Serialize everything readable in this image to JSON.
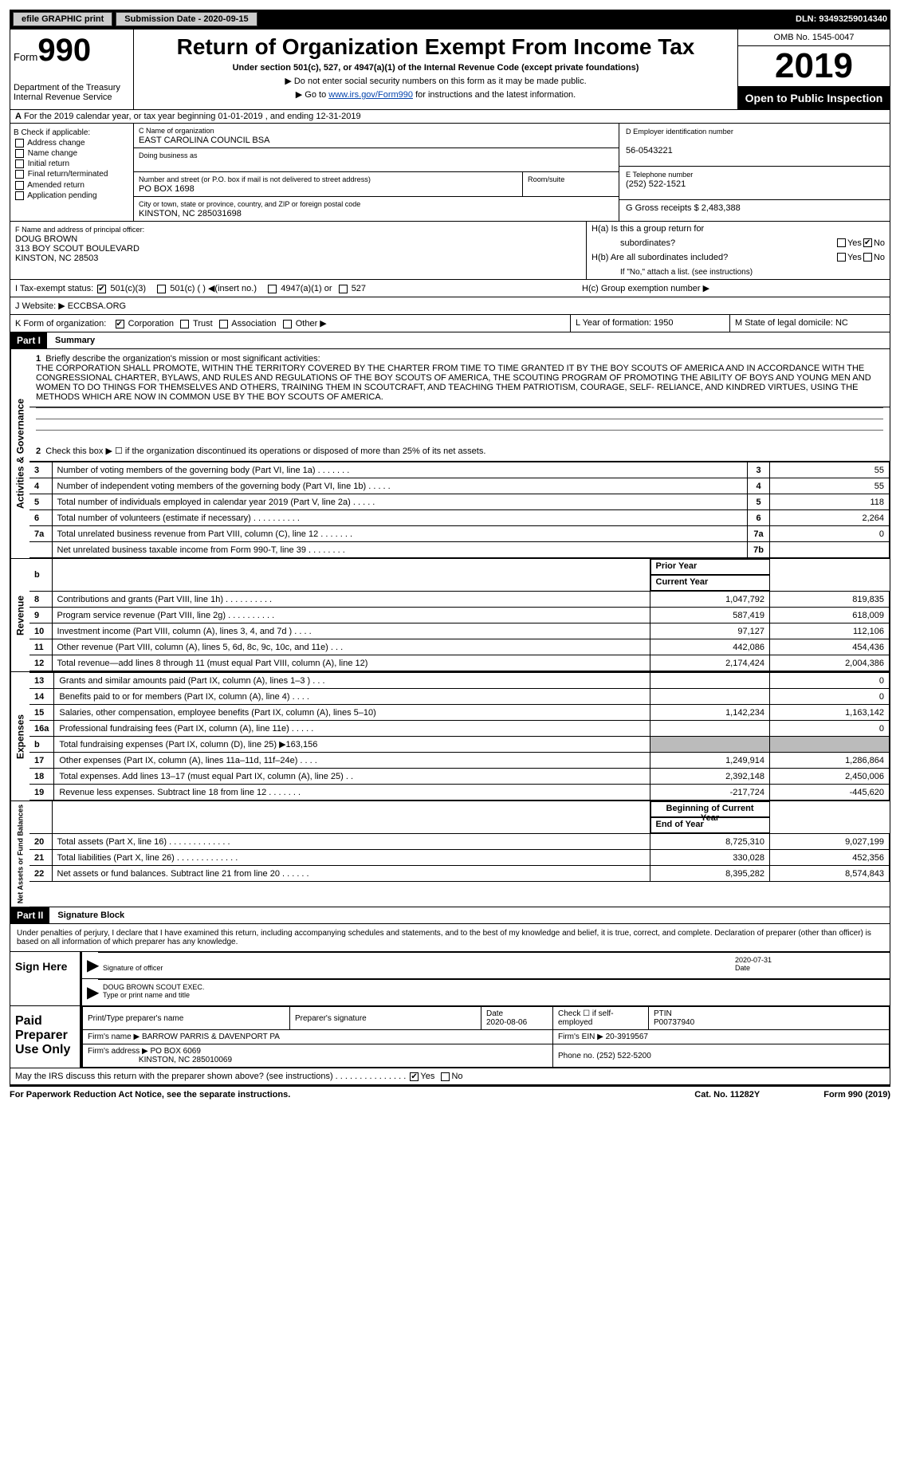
{
  "topbar": {
    "efile": "efile GRAPHIC print",
    "subdate": "Submission Date - 2020-09-15",
    "dln": "DLN: 93493259014340"
  },
  "header": {
    "form": "Form",
    "num": "990",
    "dept": "Department of the Treasury",
    "irs": "Internal Revenue Service",
    "title": "Return of Organization Exempt From Income Tax",
    "sub": "Under section 501(c), 527, or 4947(a)(1) of the Internal Revenue Code (except private foundations)",
    "warn1": "▶ Do not enter social security numbers on this form as it may be made public.",
    "warn2_pre": "▶ Go to ",
    "warn2_link": "www.irs.gov/Form990",
    "warn2_post": " for instructions and the latest information.",
    "omb": "OMB No. 1545-0047",
    "year": "2019",
    "open": "Open to Public Inspection"
  },
  "rowA": "For the 2019 calendar year, or tax year beginning 01-01-2019   , and ending 12-31-2019",
  "boxB": {
    "hdr": "B Check if applicable:",
    "opts": [
      "Address change",
      "Name change",
      "Initial return",
      "Final return/terminated",
      "Amended return",
      "Application pending"
    ]
  },
  "boxC": {
    "namelbl": "C Name of organization",
    "name": "EAST CAROLINA COUNCIL BSA",
    "dba": "Doing business as",
    "addrlbl": "Number and street (or P.O. box if mail is not delivered to street address)",
    "room": "Room/suite",
    "addr": "PO BOX 1698",
    "citylbl": "City or town, state or province, country, and ZIP or foreign postal code",
    "city": "KINSTON, NC  285031698"
  },
  "boxD": {
    "lbl": "D Employer identification number",
    "val": "56-0543221"
  },
  "boxE": {
    "lbl": "E Telephone number",
    "val": "(252) 522-1521"
  },
  "boxG": {
    "lbl": "G Gross receipts $",
    "val": "2,483,388"
  },
  "boxF": {
    "lbl": "F Name and address of principal officer:",
    "name": "DOUG BROWN",
    "addr1": "313 BOY SCOUT BOULEVARD",
    "addr2": "KINSTON, NC  28503"
  },
  "boxH": {
    "a": "H(a)  Is this a group return for",
    "a2": "subordinates?",
    "b": "H(b)  Are all subordinates included?",
    "b2": "If \"No,\" attach a list. (see instructions)",
    "c": "H(c)  Group exemption number ▶",
    "yes": "Yes",
    "no": "No"
  },
  "rowI": {
    "lbl": "I   Tax-exempt status:",
    "o1": "501(c)(3)",
    "o2": "501(c) (  ) ◀(insert no.)",
    "o3": "4947(a)(1) or",
    "o4": "527"
  },
  "rowJ": {
    "lbl": "J   Website: ▶",
    "val": "ECCBSA.ORG"
  },
  "rowK": {
    "lbl": "K Form of organization:",
    "o1": "Corporation",
    "o2": "Trust",
    "o3": "Association",
    "o4": "Other ▶",
    "L": "L Year of formation: 1950",
    "M": "M State of legal domicile: NC"
  },
  "part1": {
    "hdr": "Part I",
    "title": "Summary"
  },
  "q1": {
    "num": "1",
    "lbl": "Briefly describe the organization's mission or most significant activities:",
    "txt": "THE CORPORATION SHALL PROMOTE, WITHIN THE TERRITORY COVERED BY THE CHARTER FROM TIME TO TIME GRANTED IT BY THE BOY SCOUTS OF AMERICA AND IN ACCORDANCE WITH THE CONGRESSIONAL CHARTER, BYLAWS, AND RULES AND REGULATIONS OF THE BOY SCOUTS OF AMERICA, THE SCOUTING PROGRAM OF PROMOTING THE ABILITY OF BOYS AND YOUNG MEN AND WOMEN TO DO THINGS FOR THEMSELVES AND OTHERS, TRAINING THEM IN SCOUTCRAFT, AND TEACHING THEM PATRIOTISM, COURAGE, SELF- RELIANCE, AND KINDRED VIRTUES, USING THE METHODS WHICH ARE NOW IN COMMON USE BY THE BOY SCOUTS OF AMERICA."
  },
  "q2": "Check this box ▶ ☐ if the organization discontinued its operations or disposed of more than 25% of its net assets.",
  "gov": [
    {
      "n": "3",
      "t": "Number of voting members of the governing body (Part VI, line 1a)  .    .    .    .    .    .    .",
      "c": "3",
      "v": "55"
    },
    {
      "n": "4",
      "t": "Number of independent voting members of the governing body (Part VI, line 1b)   .    .    .    .    .",
      "c": "4",
      "v": "55"
    },
    {
      "n": "5",
      "t": "Total number of individuals employed in calendar year 2019 (Part V, line 2a)   .    .    .    .    .",
      "c": "5",
      "v": "118"
    },
    {
      "n": "6",
      "t": "Total number of volunteers (estimate if necessary)   .    .    .    .    .    .    .    .    .    .",
      "c": "6",
      "v": "2,264"
    },
    {
      "n": "7a",
      "t": "Total unrelated business revenue from Part VIII, column (C), line 12   .    .    .    .    .    .    .",
      "c": "7a",
      "v": "0"
    },
    {
      "n": "",
      "t": "Net unrelated business taxable income from Form 990-T, line 39   .    .    .    .    .    .    .    .",
      "c": "7b",
      "v": ""
    }
  ],
  "rev_hdr": {
    "py": "Prior Year",
    "cy": "Current Year"
  },
  "rev": [
    {
      "n": "8",
      "t": "Contributions and grants (Part VIII, line 1h)   .    .    .    .    .    .    .    .    .    .",
      "p": "1,047,792",
      "c": "819,835"
    },
    {
      "n": "9",
      "t": "Program service revenue (Part VIII, line 2g)   .    .    .    .    .    .    .    .    .    .",
      "p": "587,419",
      "c": "618,009"
    },
    {
      "n": "10",
      "t": "Investment income (Part VIII, column (A), lines 3, 4, and 7d )   .    .    .    .",
      "p": "97,127",
      "c": "112,106"
    },
    {
      "n": "11",
      "t": "Other revenue (Part VIII, column (A), lines 5, 6d, 8c, 9c, 10c, and 11e)   .    .    .",
      "p": "442,086",
      "c": "454,436"
    },
    {
      "n": "12",
      "t": "Total revenue—add lines 8 through 11 (must equal Part VIII, column (A), line 12)",
      "p": "2,174,424",
      "c": "2,004,386"
    }
  ],
  "exp": [
    {
      "n": "13",
      "t": "Grants and similar amounts paid (Part IX, column (A), lines 1–3 )   .    .    .",
      "p": "",
      "c": "0"
    },
    {
      "n": "14",
      "t": "Benefits paid to or for members (Part IX, column (A), line 4)   .    .    .    .",
      "p": "",
      "c": "0"
    },
    {
      "n": "15",
      "t": "Salaries, other compensation, employee benefits (Part IX, column (A), lines 5–10)",
      "p": "1,142,234",
      "c": "1,163,142"
    },
    {
      "n": "16a",
      "t": "Professional fundraising fees (Part IX, column (A), line 11e)   .    .    .    .    .",
      "p": "",
      "c": "0"
    },
    {
      "n": "b",
      "t": "Total fundraising expenses (Part IX, column (D), line 25) ▶163,156",
      "p": "gray",
      "c": "gray"
    },
    {
      "n": "17",
      "t": "Other expenses (Part IX, column (A), lines 11a–11d, 11f–24e)   .    .    .    .",
      "p": "1,249,914",
      "c": "1,286,864"
    },
    {
      "n": "18",
      "t": "Total expenses. Add lines 13–17 (must equal Part IX, column (A), line 25)   .   .",
      "p": "2,392,148",
      "c": "2,450,006"
    },
    {
      "n": "19",
      "t": "Revenue less expenses. Subtract line 18 from line 12   .    .    .    .    .    .    .",
      "p": "-217,724",
      "c": "-445,620"
    }
  ],
  "na_hdr": {
    "b": "Beginning of Current Year",
    "e": "End of Year"
  },
  "na": [
    {
      "n": "20",
      "t": "Total assets (Part X, line 16)   .    .    .    .    .    .    .    .    .    .    .    .    .",
      "p": "8,725,310",
      "c": "9,027,199"
    },
    {
      "n": "21",
      "t": "Total liabilities (Part X, line 26)   .    .    .    .    .    .    .    .    .    .    .    .   .",
      "p": "330,028",
      "c": "452,356"
    },
    {
      "n": "22",
      "t": "Net assets or fund balances. Subtract line 21 from line 20   .    .    .    .    .    .",
      "p": "8,395,282",
      "c": "8,574,843"
    }
  ],
  "vtabs": {
    "ag": "Activities & Governance",
    "rv": "Revenue",
    "ex": "Expenses",
    "na": "Net Assets or Fund Balances"
  },
  "part2": {
    "hdr": "Part II",
    "title": "Signature Block"
  },
  "sig": {
    "decl": "Under penalties of perjury, I declare that I have examined this return, including accompanying schedules and statements, and to the best of my knowledge and belief, it is true, correct, and complete. Declaration of preparer (other than officer) is based on all information of which preparer has any knowledge.",
    "sign": "Sign Here",
    "sigoff": "Signature of officer",
    "date": "2020-07-31",
    "datelbl": "Date",
    "name": "DOUG BROWN  SCOUT EXEC.",
    "namelbl": "Type or print name and title"
  },
  "prep": {
    "hdr": "Paid Preparer Use Only",
    "c1": "Print/Type preparer's name",
    "c2": "Preparer's signature",
    "c3": "Date",
    "c3v": "2020-08-06",
    "c4": "Check ☐ if self-employed",
    "c5": "PTIN",
    "c5v": "P00737940",
    "fn": "Firm's name      ▶",
    "fnv": "BARROW PARRIS & DAVENPORT PA",
    "fe": "Firm's EIN ▶",
    "fev": "20-3919567",
    "fa": "Firm's address ▶",
    "fav1": "PO BOX 6069",
    "fav2": "KINSTON, NC  285010069",
    "ph": "Phone no.",
    "phv": "(252) 522-5200"
  },
  "may": "May the IRS discuss this return with the preparer shown above? (see instructions)   .    .    .    .    .    .    .    .    .    .    .    .    .    .    .",
  "foot": {
    "l": "For Paperwork Reduction Act Notice, see the separate instructions.",
    "m": "Cat. No. 11282Y",
    "r": "Form 990 (2019)"
  }
}
